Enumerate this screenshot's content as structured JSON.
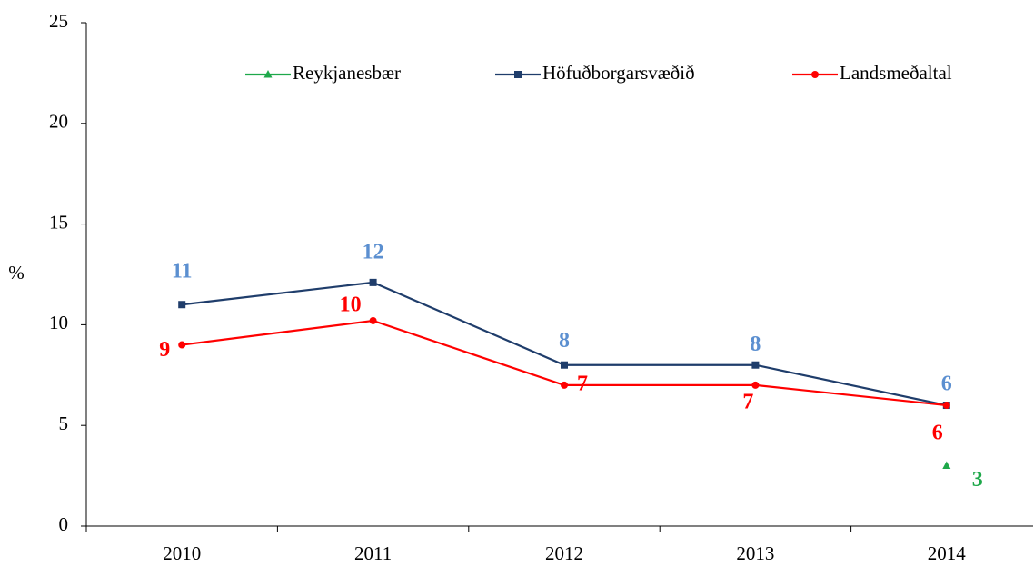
{
  "chart_data": {
    "type": "line",
    "y_label": "%",
    "categories": [
      "2010",
      "2011",
      "2012",
      "2013",
      "2014"
    ],
    "series": [
      {
        "name": "Reykjanesbær",
        "color": "#1ea84a",
        "label_color": "#1ea84a",
        "marker": "triangle",
        "values": [
          null,
          null,
          null,
          null,
          3
        ]
      },
      {
        "name": "Höfuðborgarsvæðið",
        "color": "#1f3d6b",
        "label_color": "#5b8fd0",
        "marker": "square",
        "values": [
          11,
          12.1,
          8,
          8,
          6
        ],
        "value_labels": [
          "11",
          "12",
          "8",
          "8",
          "6"
        ]
      },
      {
        "name": "Landsmeðaltal",
        "color": "#ff0000",
        "label_color": "#ff0000",
        "marker": "circle",
        "values": [
          9,
          10.2,
          7,
          7,
          6
        ],
        "value_labels": [
          "9",
          "10",
          "7",
          "7",
          "6"
        ]
      }
    ],
    "ylim": [
      0,
      25
    ],
    "yticks": [
      0,
      5,
      10,
      15,
      20,
      25
    ],
    "grid": false,
    "legend": "top"
  }
}
